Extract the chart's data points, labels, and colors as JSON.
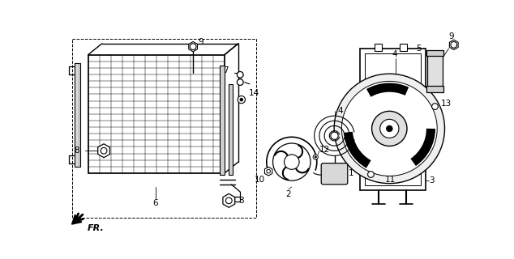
{
  "bg_color": "#ffffff",
  "line_color": "#000000",
  "fig_w": 6.34,
  "fig_h": 3.2,
  "dpi": 100
}
